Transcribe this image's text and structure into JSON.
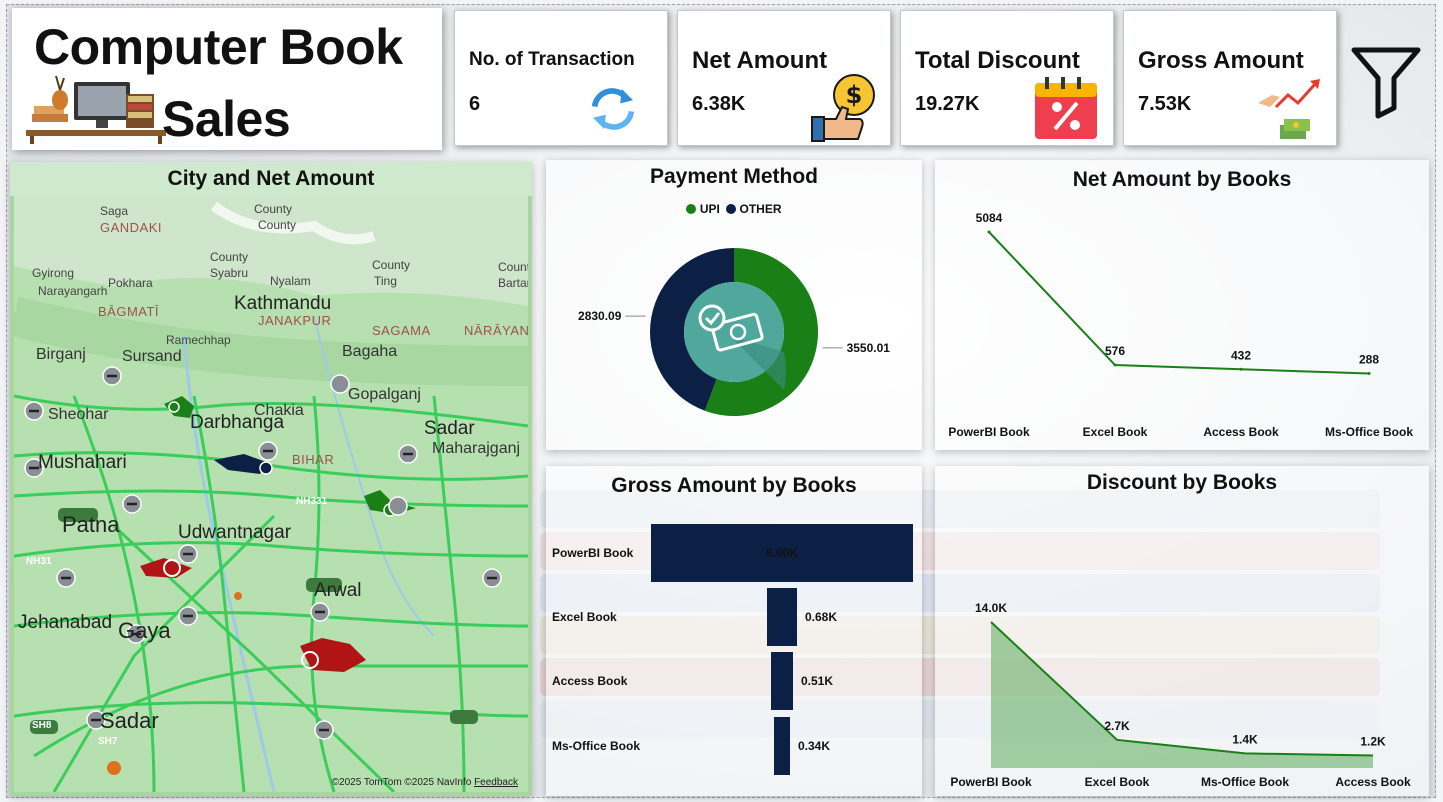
{
  "header": {
    "title_line1": "Computer Book",
    "title_line2": "Sales"
  },
  "kpis": [
    {
      "label": "No. of Transaction",
      "value": "6",
      "icon": "refresh-icon"
    },
    {
      "label": "Net Amount",
      "value": "6.38K",
      "icon": "money-thumbs-up-icon"
    },
    {
      "label": "Total Discount",
      "value": "19.27K",
      "icon": "discount-calendar-icon"
    },
    {
      "label": "Gross Amount",
      "value": "7.53K",
      "icon": "growth-hand-icon"
    }
  ],
  "filter_icon": "filter-icon",
  "map": {
    "title": "City and Net Amount",
    "labels": [
      {
        "text": "Saga",
        "cls": "small"
      },
      {
        "text": "County",
        "cls": "small"
      },
      {
        "text": "County",
        "cls": "small"
      },
      {
        "text": "GANDAKI",
        "cls": "region"
      },
      {
        "text": "Gyirong",
        "cls": "small"
      },
      {
        "text": "County",
        "cls": "small"
      },
      {
        "text": "Syabru",
        "cls": "small"
      },
      {
        "text": "Nyalam",
        "cls": "small"
      },
      {
        "text": "County",
        "cls": "small"
      },
      {
        "text": "Ting",
        "cls": "small"
      },
      {
        "text": "Count",
        "cls": "small"
      },
      {
        "text": "Bartar",
        "cls": "small"
      },
      {
        "text": "Pokhara",
        "cls": "small"
      },
      {
        "text": "Narayangarh",
        "cls": "small"
      },
      {
        "text": "BĀGMATĪ",
        "cls": "region"
      },
      {
        "text": "Kathmandu",
        "cls": "big"
      },
      {
        "text": "JANAKPUR",
        "cls": "region"
      },
      {
        "text": "SAGAMA",
        "cls": "region"
      },
      {
        "text": "NĀRĀYANĪ",
        "cls": "region"
      },
      {
        "text": "Ramechhap",
        "cls": "small"
      },
      {
        "text": "Bagaha",
        "cls": ""
      },
      {
        "text": "Birganj",
        "cls": ""
      },
      {
        "text": "Sursand",
        "cls": ""
      },
      {
        "text": "Gopalganj",
        "cls": ""
      },
      {
        "text": "Sheohar",
        "cls": ""
      },
      {
        "text": "Chakia",
        "cls": ""
      },
      {
        "text": "Darbhanga",
        "cls": "big"
      },
      {
        "text": "Sadar",
        "cls": "big"
      },
      {
        "text": "Maharajganj",
        "cls": ""
      },
      {
        "text": "Mushahari",
        "cls": "big"
      },
      {
        "text": "BIHAR",
        "cls": "region"
      },
      {
        "text": "NH331",
        "cls": "small"
      },
      {
        "text": "Patna",
        "cls": "huge"
      },
      {
        "text": "Udwantnagar",
        "cls": "big"
      },
      {
        "text": "NH31",
        "cls": "small"
      },
      {
        "text": "Arwal",
        "cls": "big"
      },
      {
        "text": "Jehanabad",
        "cls": "big"
      },
      {
        "text": "Gaya",
        "cls": "huge"
      },
      {
        "text": "Sadar",
        "cls": "huge"
      },
      {
        "text": "SH7",
        "cls": "small"
      },
      {
        "text": "SH8",
        "cls": "small"
      }
    ],
    "credit_prefix": "©2025 TomTom  ©2025 NavInfo",
    "credit_link": "Feedback"
  },
  "payment": {
    "title": "Payment Method",
    "legend": [
      {
        "name": "UPI",
        "color": "#1a7f17"
      },
      {
        "name": "OTHER",
        "color": "#0c1f45"
      }
    ],
    "center_icon": "cash-check-icon"
  },
  "net_books": {
    "title": "Net Amount by Books"
  },
  "gross_books": {
    "title": "Gross Amount by Books"
  },
  "discount_books": {
    "title": "Discount by Books"
  },
  "chart_data": [
    {
      "type": "pie",
      "title": "Payment Method",
      "categories": [
        "UPI",
        "OTHER"
      ],
      "values": [
        3550.01,
        2830.09
      ],
      "data_labels": [
        "3550.01",
        "2830.09"
      ],
      "colors": [
        "#1a7f17",
        "#0c1f45"
      ],
      "legend": "top"
    },
    {
      "type": "line",
      "title": "Net Amount by Books",
      "categories": [
        "PowerBI Book",
        "Excel Book",
        "Access Book",
        "Ms-Office Book"
      ],
      "values": [
        5084,
        576,
        432,
        288
      ],
      "data_labels": [
        "5084",
        "576",
        "432",
        "288"
      ],
      "color": "#1a7f17",
      "grid": false
    },
    {
      "type": "bar",
      "title": "Gross Amount by Books",
      "categories": [
        "PowerBI Book",
        "Excel Book",
        "Access Book",
        "Ms-Office Book"
      ],
      "values": [
        6000,
        680,
        510,
        340
      ],
      "data_labels": [
        "6.00K",
        "0.68K",
        "0.51K",
        "0.34K"
      ],
      "color": "#0c1f45",
      "orientation": "funnel"
    },
    {
      "type": "area",
      "title": "Discount by Books",
      "categories": [
        "PowerBI Book",
        "Excel Book",
        "Ms-Office Book",
        "Access Book"
      ],
      "values": [
        14000,
        2700,
        1400,
        1200
      ],
      "data_labels": [
        "14.0K",
        "2.7K",
        "1.4K",
        "1.2K"
      ],
      "color": "#1a7f17",
      "grid": false
    }
  ]
}
